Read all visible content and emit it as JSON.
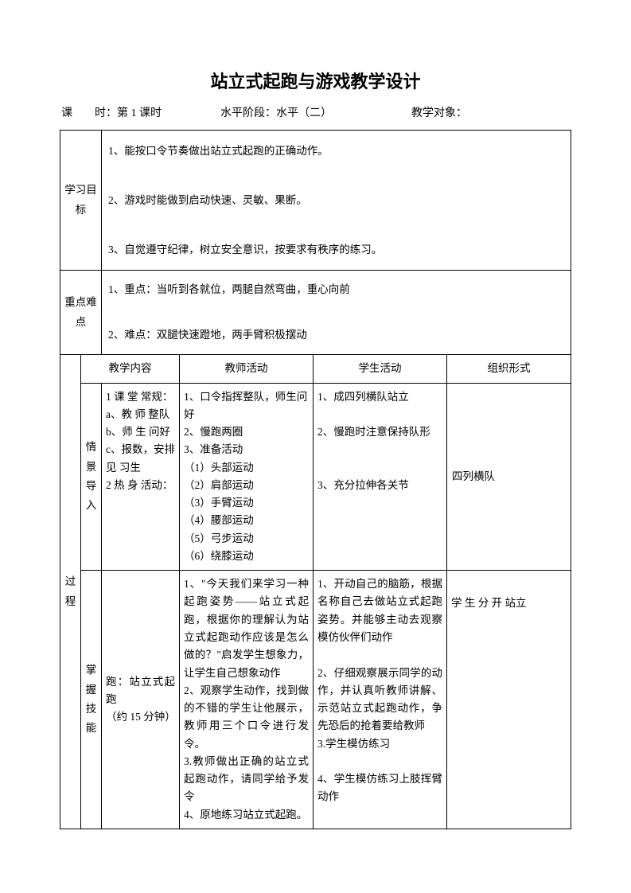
{
  "title": "站立式起跑与游戏教学设计",
  "meta": {
    "lesson_label": "课　　时：",
    "lesson_value": "第 1 课时",
    "level_label": "水平阶段：",
    "level_value": "水平（二）",
    "target_label": "教学对象：",
    "target_value": ""
  },
  "sections": {
    "goals_label": "学习目标",
    "goals_text": "1、能按口令节奏做出站立式起跑的正确动作。\n\n2、游戏时能做到启动快速、灵敏、果断。\n\n3、自觉遵守纪律，树立安全意识，按要求有秩序的练习。",
    "difficulty_label": "重点难点",
    "difficulty_text": "1、重点：当听到各就位，两腿自然弯曲，重心向前\n\n2、难点：双腿快速蹬地，两手臂积极摆动",
    "process_label": "过程",
    "headers": {
      "content": "教学内容",
      "teacher": "教师活动",
      "student": "学生活动",
      "org": "组织形式"
    },
    "row1": {
      "label": "情景导入",
      "content": "1 课 堂 常规：\na、教 师 整队\nb、师 生 问好\nc、报数，安排 见 习生\n2 热 身 活动：",
      "teacher": "1、口令指挥整队，师生问好\n2、慢跑两圈\n3、准备活动\n（1）头部运动\n（2）肩部运动\n（3）手臂运动\n（4）腰部运动\n（5）弓步运动\n（6）绕膝运动",
      "student": "1、成四列横队站立\n\n2、慢跑时注意保持队形\n\n\n3、充分拉伸各关节",
      "org": "四列横队"
    },
    "row2": {
      "label": "掌握技能",
      "content": "跑：站立式起跑\n（约 15 分钟）",
      "teacher": "1、\"今天我们来学习一种起跑姿势——站立式起跑，根据你的理解认为站立式起跑动作应该是怎么做的？\"启发学生想象力，让学生自己想象动作\n2、观察学生动作，找到做的不错的学生让他展示，教师用三个口令进行发令。\n3.教师做出正确的站立式起跑动作，请同学给予发令\n4、原地练习站立式起跑。",
      "student": "1、开动自己的脑筋，根据名称自己去做站立式起跑姿势。并能够主动去观察模仿伙伴们动作\n\n2、仔细观察展示同学的动作，并认真听教师讲解、示范站立式起跑动作，争先恐后的抢着要给教师\n3.学生模仿练习\n\n4、学生模仿练习上肢挥臂动作",
      "org": "学 生 分 开 站立"
    }
  }
}
